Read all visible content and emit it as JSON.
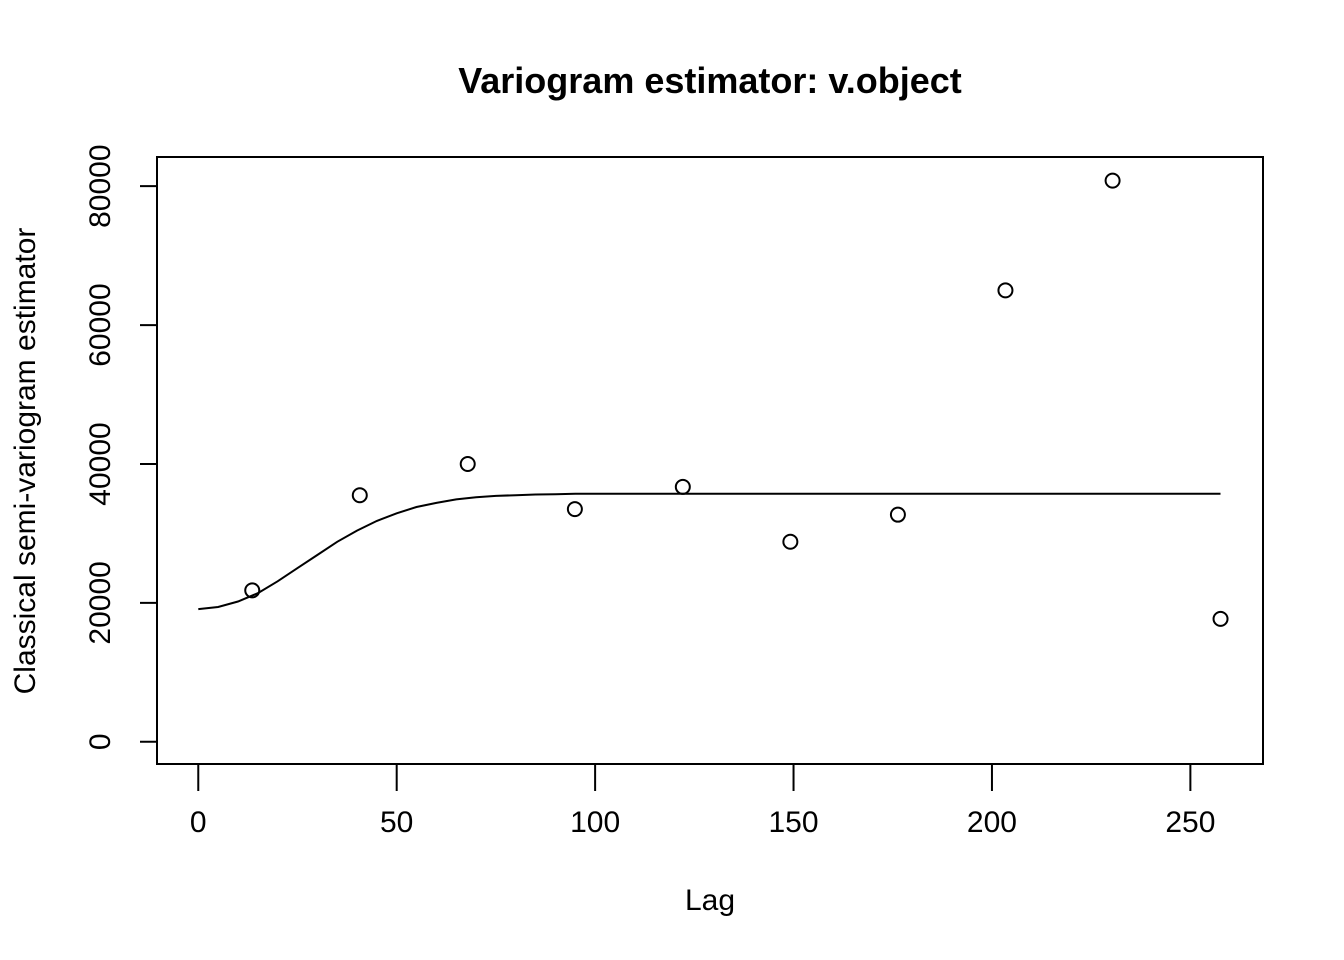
{
  "chart_data": {
    "type": "scatter",
    "title": "Variogram estimator: v.object",
    "xlabel": "Lag",
    "ylabel": "Classical semi-variogram estimator",
    "xlim": [
      -10.4,
      268.3
    ],
    "ylim": [
      -3200,
      84200
    ],
    "x_ticks": [
      0,
      50,
      100,
      150,
      200,
      250
    ],
    "y_ticks": [
      0,
      20000,
      40000,
      60000,
      80000
    ],
    "grid": false,
    "series": [
      {
        "kind": "points",
        "x": [
          13.6,
          40.7,
          67.9,
          94.9,
          122.1,
          149.2,
          176.3,
          203.4,
          230.4,
          257.6
        ],
        "y": [
          21800,
          35500,
          40000,
          33500,
          36700,
          28800,
          32700,
          65000,
          80800,
          17700
        ]
      },
      {
        "kind": "line",
        "x": [
          0,
          5,
          10,
          15,
          20,
          25,
          30,
          35,
          40,
          45,
          50,
          55,
          60,
          65,
          70,
          75,
          80,
          85,
          90,
          95,
          100,
          110,
          120,
          150,
          200,
          257.6
        ],
        "y": [
          19100,
          19400,
          20200,
          21400,
          23100,
          25000,
          26900,
          28800,
          30400,
          31800,
          32900,
          33800,
          34400,
          34900,
          35200,
          35400,
          35500,
          35600,
          35650,
          35700,
          35700,
          35700,
          35700,
          35700,
          35700,
          35700
        ]
      }
    ]
  }
}
